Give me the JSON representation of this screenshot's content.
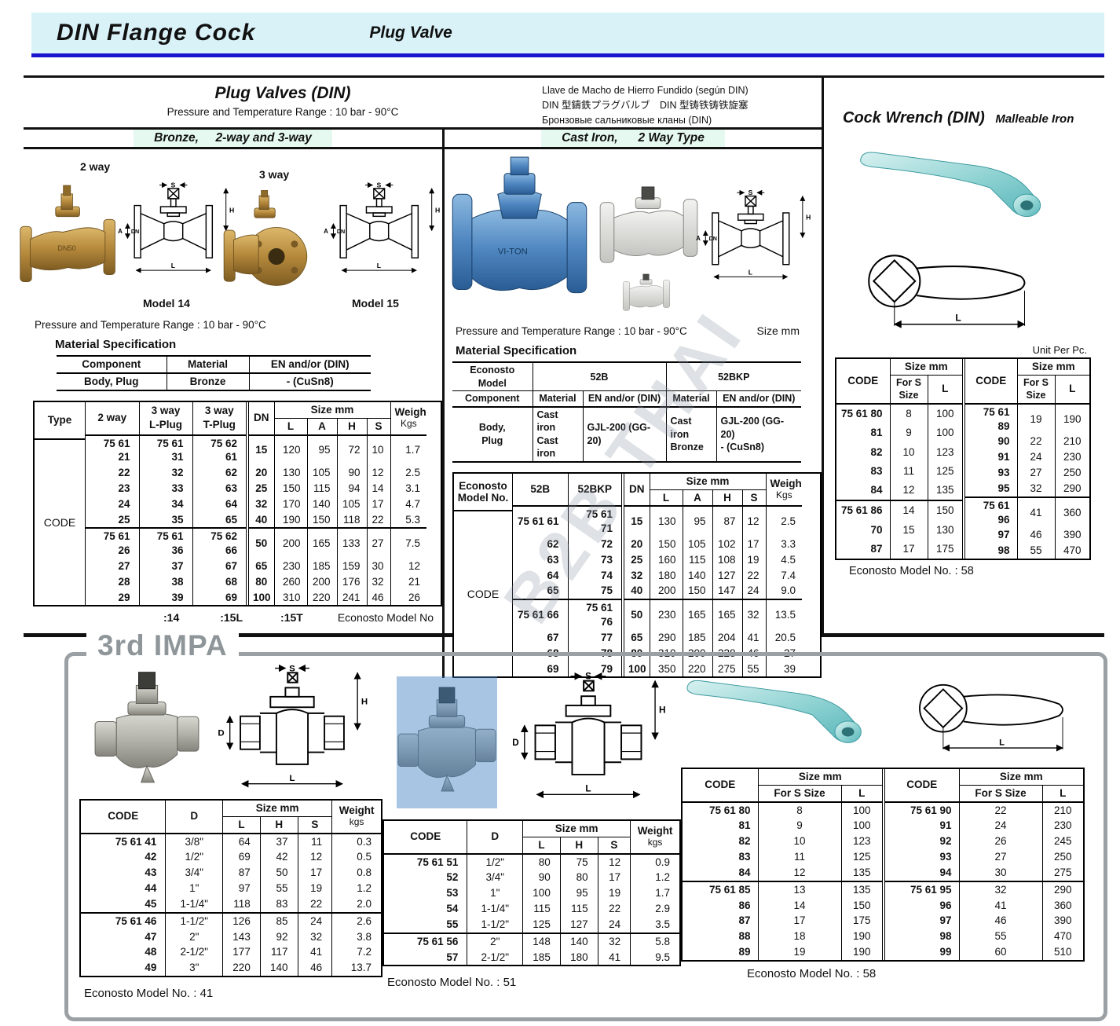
{
  "header": {
    "title": "DIN Flange Cock",
    "subtitle": "Plug Valve"
  },
  "watermark": "B2B THAI",
  "pv": {
    "title": "Plug Valves (DIN)",
    "range": "Pressure and Temperature Range : 10 bar - 90°C",
    "lang1": "Llave de Macho de Hierro Fundido (según DIN)",
    "lang2": "DIN 型鑄鉄プラグバルブ　DIN 型铸铁铸铁旋塞",
    "lang3": "Бронзовые сальниковые кланы (DIN)"
  },
  "lab": {
    "type": "Type",
    "code": "CODE",
    "dn": "DN",
    "sizeMm": "Size mm",
    "L": "L",
    "A": "A",
    "H": "H",
    "S": "S",
    "D": "D",
    "weight": "Weight",
    "kgs": "Kgs",
    "kgsLower": "kgs"
  },
  "diag": {
    "s": "S",
    "h": "H",
    "a": "A",
    "dn": "DN",
    "l": "L",
    "d": "D"
  },
  "bronze": {
    "banner": "Bronze,     2-way and 3-way",
    "lbl2way": "2 way",
    "lbl3way": "3 way",
    "model14": "Model 14",
    "model15": "Model 15",
    "range": "Pressure and Temperature Range : 10 bar - 90°C",
    "matTitle": "Material Specification",
    "mat": {
      "h1": "Component",
      "h2": "Material",
      "h3": "EN and/or (DIN)",
      "c1": "Body, Plug",
      "c2": "Bronze",
      "c3": "- (CuSn8)"
    },
    "h2way": "2 way",
    "hLplug": "3 way\nL-Plug",
    "hTplug": "3 way\nT-Plug",
    "g1": [
      [
        "75 61 21",
        "75 61 31",
        "75 62 61",
        "15",
        "120",
        "95",
        "72",
        "10",
        "1.7"
      ],
      [
        "22",
        "32",
        "62",
        "20",
        "130",
        "105",
        "90",
        "12",
        "2.5"
      ],
      [
        "23",
        "33",
        "63",
        "25",
        "150",
        "115",
        "94",
        "14",
        "3.1"
      ],
      [
        "24",
        "34",
        "64",
        "32",
        "170",
        "140",
        "105",
        "17",
        "4.7"
      ],
      [
        "25",
        "35",
        "65",
        "40",
        "190",
        "150",
        "118",
        "22",
        "5.3"
      ]
    ],
    "g2": [
      [
        "75 61 26",
        "75 61 36",
        "75 62 66",
        "50",
        "200",
        "165",
        "133",
        "27",
        "7.5"
      ],
      [
        "27",
        "37",
        "67",
        "65",
        "230",
        "185",
        "159",
        "30",
        "12"
      ],
      [
        "28",
        "38",
        "68",
        "80",
        "260",
        "200",
        "176",
        "32",
        "21"
      ],
      [
        "29",
        "39",
        "69",
        "100",
        "310",
        "220",
        "241",
        "46",
        "26"
      ]
    ],
    "f14": ":14",
    "f15l": ":15L",
    "f15t": ":15T",
    "fmodel": "Econosto  Model No"
  },
  "ci": {
    "banner": "Cast Iron,      2 Way Type",
    "range": "Pressure and Temperature Range : 10 bar - 90°C",
    "sizeMm": "Size mm",
    "matTitle": "Material Specification",
    "mat": {
      "econ": "Econosto Model",
      "m52b": "52B",
      "m52bkp": "52BKP",
      "comp": "Component",
      "mater": "Material",
      "en": "EN and/or (DIN)",
      "bodyPlug": "Body,\nPlug",
      "cc": "Cast iron\nCast iron",
      "gjl": "GJL-200 (GG-20)",
      "cb": "Cast iron\nBronze",
      "gjl2": "GJL-200 (GG-20)\n- (CuSn8)"
    },
    "hEcon": "Econosto\nModel  No.",
    "h52b": "52B",
    "h52bkp": "52BKP",
    "g1": [
      [
        "75 61 61",
        "75 61 71",
        "15",
        "130",
        "95",
        "87",
        "12",
        "2.5"
      ],
      [
        "62",
        "72",
        "20",
        "150",
        "105",
        "102",
        "17",
        "3.3"
      ],
      [
        "63",
        "73",
        "25",
        "160",
        "115",
        "108",
        "19",
        "4.5"
      ],
      [
        "64",
        "74",
        "32",
        "180",
        "140",
        "127",
        "22",
        "7.4"
      ],
      [
        "65",
        "75",
        "40",
        "200",
        "150",
        "147",
        "24",
        "9.0"
      ]
    ],
    "g2": [
      [
        "75 61 66",
        "75 61 76",
        "50",
        "230",
        "165",
        "165",
        "32",
        "13.5"
      ],
      [
        "67",
        "77",
        "65",
        "290",
        "185",
        "204",
        "41",
        "20.5"
      ],
      [
        "68",
        "78",
        "80",
        "310",
        "200",
        "228",
        "46",
        "27"
      ],
      [
        "69",
        "79",
        "100",
        "350",
        "220",
        "275",
        "55",
        "39"
      ]
    ]
  },
  "cw": {
    "title": "Cock Wrench (DIN)",
    "sub": "Malleable Iron",
    "unit": "Unit Per Pc.",
    "forS": "For S\nSize",
    "l1": [
      [
        "75 61 80",
        "8",
        "100"
      ],
      [
        "81",
        "9",
        "100"
      ],
      [
        "82",
        "10",
        "123"
      ],
      [
        "83",
        "11",
        "125"
      ],
      [
        "84",
        "12",
        "135"
      ]
    ],
    "l2": [
      [
        "75 61 86",
        "14",
        "150"
      ],
      [
        "70",
        "15",
        "130"
      ],
      [
        "87",
        "17",
        "175"
      ]
    ],
    "r1": [
      [
        "75 61 89",
        "19",
        "190"
      ],
      [
        "90",
        "22",
        "210"
      ],
      [
        "91",
        "24",
        "230"
      ],
      [
        "93",
        "27",
        "250"
      ],
      [
        "95",
        "32",
        "290"
      ]
    ],
    "r2": [
      [
        "75 61 96",
        "41",
        "360"
      ],
      [
        "97",
        "46",
        "390"
      ],
      [
        "98",
        "55",
        "470"
      ]
    ],
    "footer": "Econosto Model No. : 58"
  },
  "impa": {
    "label": "3rd IMPA"
  },
  "b41": {
    "g1": [
      [
        "75 61 41",
        "3/8\"",
        "64",
        "37",
        "11",
        "0.3"
      ],
      [
        "42",
        "1/2\"",
        "69",
        "42",
        "12",
        "0.5"
      ],
      [
        "43",
        "3/4\"",
        "87",
        "50",
        "17",
        "0.8"
      ],
      [
        "44",
        "1\"",
        "97",
        "55",
        "19",
        "1.2"
      ],
      [
        "45",
        "1-1/4\"",
        "118",
        "83",
        "22",
        "2.0"
      ]
    ],
    "g2": [
      [
        "75 61 46",
        "1-1/2\"",
        "126",
        "85",
        "24",
        "2.6"
      ],
      [
        "47",
        "2\"",
        "143",
        "92",
        "32",
        "3.8"
      ],
      [
        "48",
        "2-1/2\"",
        "177",
        "117",
        "41",
        "7.2"
      ],
      [
        "49",
        "3\"",
        "220",
        "140",
        "46",
        "13.7"
      ]
    ],
    "footer": "Econosto Model No. : 41"
  },
  "b51": {
    "g1": [
      [
        "75 61 51",
        "1/2\"",
        "80",
        "75",
        "12",
        "0.9"
      ],
      [
        "52",
        "3/4\"",
        "90",
        "80",
        "17",
        "1.2"
      ],
      [
        "53",
        "1\"",
        "100",
        "95",
        "19",
        "1.7"
      ],
      [
        "54",
        "1-1/4\"",
        "115",
        "115",
        "22",
        "2.9"
      ],
      [
        "55",
        "1-1/2\"",
        "125",
        "127",
        "24",
        "3.5"
      ]
    ],
    "g2": [
      [
        "75 61 56",
        "2\"",
        "148",
        "140",
        "32",
        "5.8"
      ],
      [
        "57",
        "2-1/2\"",
        "185",
        "180",
        "41",
        "9.5"
      ]
    ],
    "footer": "Econosto Model No. : 51"
  },
  "b58": {
    "forS": "For S Size",
    "l1": [
      [
        "75 61 80",
        "8",
        "100"
      ],
      [
        "81",
        "9",
        "100"
      ],
      [
        "82",
        "10",
        "123"
      ],
      [
        "83",
        "11",
        "125"
      ],
      [
        "84",
        "12",
        "135"
      ]
    ],
    "l2": [
      [
        "75 61 85",
        "13",
        "135"
      ],
      [
        "86",
        "14",
        "150"
      ],
      [
        "87",
        "17",
        "175"
      ],
      [
        "88",
        "18",
        "190"
      ],
      [
        "89",
        "19",
        "190"
      ]
    ],
    "r1": [
      [
        "75 61 90",
        "22",
        "210"
      ],
      [
        "91",
        "24",
        "230"
      ],
      [
        "92",
        "26",
        "245"
      ],
      [
        "93",
        "27",
        "250"
      ],
      [
        "94",
        "30",
        "275"
      ]
    ],
    "r2": [
      [
        "75 61 95",
        "32",
        "290"
      ],
      [
        "96",
        "41",
        "360"
      ],
      [
        "97",
        "46",
        "390"
      ],
      [
        "98",
        "55",
        "470"
      ],
      [
        "99",
        "60",
        "510"
      ]
    ],
    "footer": "Econosto Model No. : 58"
  }
}
